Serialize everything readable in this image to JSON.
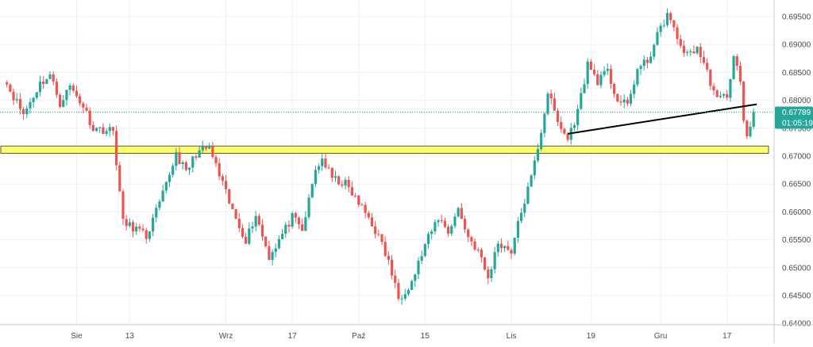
{
  "chart_data": {
    "type": "candlestick",
    "y_axis": {
      "position": "right",
      "ylim": [
        0.6395,
        0.6973
      ],
      "ticks": [
        "0.69500",
        "0.69000",
        "0.68500",
        "0.68000",
        "0.67500",
        "0.67000",
        "0.66500",
        "0.66000",
        "0.65500",
        "0.65000",
        "0.64500",
        "0.64000"
      ],
      "tick_values": [
        0.695,
        0.69,
        0.685,
        0.68,
        0.675,
        0.67,
        0.665,
        0.66,
        0.655,
        0.65,
        0.645,
        0.64
      ]
    },
    "x_axis": {
      "ticks": [
        "Sie",
        "13",
        "Wrz",
        "17",
        "Paź",
        "15",
        "Lis",
        "19",
        "Gru",
        "17"
      ],
      "tick_index": [
        22,
        38,
        67,
        87,
        107,
        127,
        153,
        177,
        198,
        218
      ]
    },
    "grid": true,
    "price_label": {
      "value": "0.67789",
      "countdown": "01:05:19",
      "price": 0.67789
    },
    "support_zone": {
      "from": 0.6705,
      "to": 0.6718
    },
    "trendline": {
      "from": [
        170,
        0.674
      ],
      "to": [
        226,
        0.6792
      ]
    },
    "colors": {
      "up": "#26a69a",
      "down": "#ef5350",
      "zone_fill": "#ffff66",
      "zone_border": "#555555",
      "trendline": "#000000",
      "price_line": "#26a69a",
      "price_tag_bg": "#26a69a"
    },
    "n_bars": 226,
    "anchors": [
      [
        0,
        0.684
      ],
      [
        6,
        0.6775
      ],
      [
        11,
        0.683
      ],
      [
        14,
        0.6845
      ],
      [
        17,
        0.6795
      ],
      [
        20,
        0.6825
      ],
      [
        24,
        0.679
      ],
      [
        27,
        0.675
      ],
      [
        33,
        0.6745
      ],
      [
        36,
        0.658
      ],
      [
        40,
        0.657
      ],
      [
        43,
        0.6555
      ],
      [
        48,
        0.663
      ],
      [
        52,
        0.6705
      ],
      [
        55,
        0.667
      ],
      [
        58,
        0.6705
      ],
      [
        62,
        0.6715
      ],
      [
        65,
        0.6665
      ],
      [
        69,
        0.66
      ],
      [
        73,
        0.655
      ],
      [
        76,
        0.6595
      ],
      [
        80,
        0.652
      ],
      [
        84,
        0.656
      ],
      [
        87,
        0.659
      ],
      [
        90,
        0.6565
      ],
      [
        94,
        0.6675
      ],
      [
        96,
        0.6695
      ],
      [
        99,
        0.666
      ],
      [
        103,
        0.665
      ],
      [
        107,
        0.6615
      ],
      [
        110,
        0.659
      ],
      [
        113,
        0.6555
      ],
      [
        116,
        0.651
      ],
      [
        119,
        0.6445
      ],
      [
        123,
        0.6475
      ],
      [
        127,
        0.654
      ],
      [
        131,
        0.659
      ],
      [
        134,
        0.6565
      ],
      [
        137,
        0.6605
      ],
      [
        140,
        0.6555
      ],
      [
        143,
        0.653
      ],
      [
        146,
        0.648
      ],
      [
        149,
        0.6545
      ],
      [
        153,
        0.653
      ],
      [
        156,
        0.66
      ],
      [
        159,
        0.666
      ],
      [
        162,
        0.6745
      ],
      [
        164,
        0.6815
      ],
      [
        167,
        0.676
      ],
      [
        170,
        0.673
      ],
      [
        173,
        0.678
      ],
      [
        176,
        0.6865
      ],
      [
        179,
        0.6835
      ],
      [
        182,
        0.685
      ],
      [
        185,
        0.68
      ],
      [
        188,
        0.679
      ],
      [
        191,
        0.6855
      ],
      [
        194,
        0.687
      ],
      [
        197,
        0.6915
      ],
      [
        200,
        0.6955
      ],
      [
        203,
        0.691
      ],
      [
        206,
        0.688
      ],
      [
        209,
        0.6895
      ],
      [
        212,
        0.685
      ],
      [
        215,
        0.68
      ],
      [
        218,
        0.681
      ],
      [
        220,
        0.6875
      ],
      [
        222,
        0.684
      ],
      [
        223,
        0.676
      ],
      [
        224,
        0.673
      ],
      [
        226,
        0.6779
      ]
    ]
  }
}
